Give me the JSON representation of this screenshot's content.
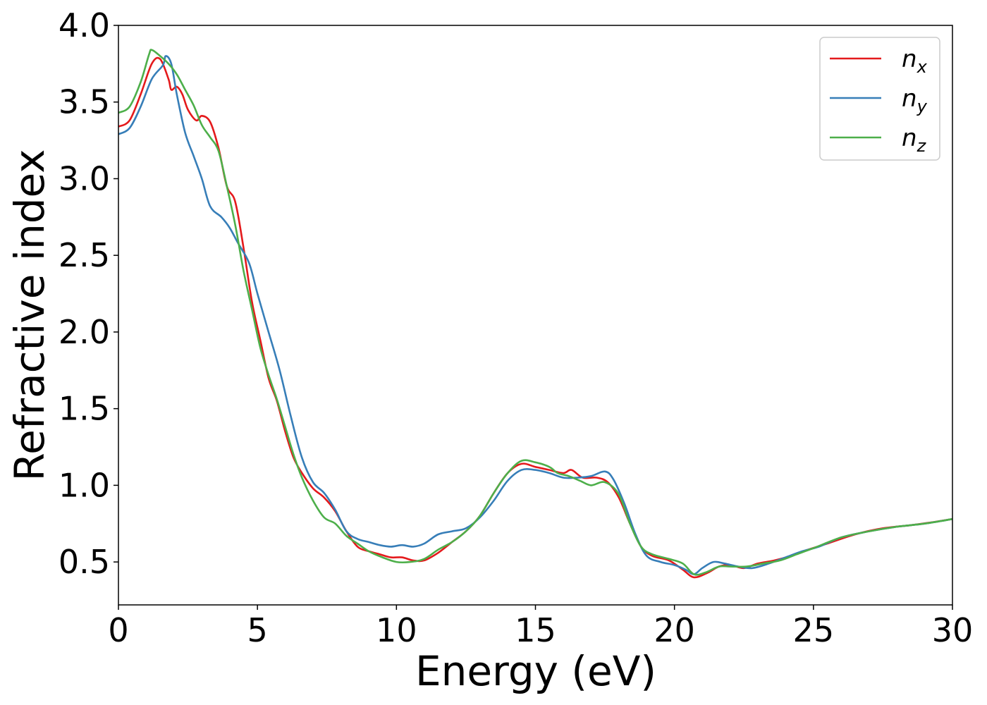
{
  "chart_data": {
    "type": "line",
    "xlabel": "Energy (eV)",
    "ylabel": "Refractive index",
    "xlim": [
      0,
      30
    ],
    "ylim": [
      0.22,
      4.0
    ],
    "xticks": [
      "0",
      "5",
      "10",
      "15",
      "20",
      "25",
      "30"
    ],
    "yticks": [
      "0.5",
      "1.0",
      "1.5",
      "2.0",
      "2.5",
      "3.0",
      "3.5",
      "4.0"
    ],
    "grid": false,
    "legend_position": "top-right",
    "series": [
      {
        "name": "n",
        "subscript": "x",
        "color": "#e41a1c",
        "points": [
          [
            0,
            3.34
          ],
          [
            0.4,
            3.38
          ],
          [
            0.8,
            3.55
          ],
          [
            1.2,
            3.75
          ],
          [
            1.5,
            3.78
          ],
          [
            1.8,
            3.65
          ],
          [
            1.9,
            3.58
          ],
          [
            2.1,
            3.6
          ],
          [
            2.3,
            3.55
          ],
          [
            2.5,
            3.45
          ],
          [
            2.8,
            3.38
          ],
          [
            3.0,
            3.41
          ],
          [
            3.3,
            3.37
          ],
          [
            3.6,
            3.2
          ],
          [
            3.9,
            2.95
          ],
          [
            4.2,
            2.85
          ],
          [
            4.5,
            2.55
          ],
          [
            4.8,
            2.2
          ],
          [
            5.1,
            1.95
          ],
          [
            5.4,
            1.7
          ],
          [
            5.7,
            1.55
          ],
          [
            6.0,
            1.35
          ],
          [
            6.3,
            1.18
          ],
          [
            6.6,
            1.08
          ],
          [
            7.0,
            0.98
          ],
          [
            7.4,
            0.92
          ],
          [
            7.8,
            0.83
          ],
          [
            8.2,
            0.7
          ],
          [
            8.6,
            0.6
          ],
          [
            9.0,
            0.57
          ],
          [
            9.4,
            0.55
          ],
          [
            9.8,
            0.53
          ],
          [
            10.2,
            0.53
          ],
          [
            10.6,
            0.51
          ],
          [
            11.0,
            0.51
          ],
          [
            11.5,
            0.56
          ],
          [
            12.0,
            0.63
          ],
          [
            12.5,
            0.7
          ],
          [
            13.0,
            0.8
          ],
          [
            13.5,
            0.95
          ],
          [
            14.0,
            1.08
          ],
          [
            14.5,
            1.14
          ],
          [
            15.0,
            1.12
          ],
          [
            15.5,
            1.1
          ],
          [
            16.0,
            1.08
          ],
          [
            16.3,
            1.1
          ],
          [
            16.7,
            1.05
          ],
          [
            17.2,
            1.05
          ],
          [
            17.6,
            1.02
          ],
          [
            18.0,
            0.92
          ],
          [
            18.4,
            0.75
          ],
          [
            18.8,
            0.6
          ],
          [
            19.2,
            0.54
          ],
          [
            19.8,
            0.51
          ],
          [
            20.3,
            0.45
          ],
          [
            20.7,
            0.4
          ],
          [
            21.2,
            0.43
          ],
          [
            21.6,
            0.47
          ],
          [
            22.0,
            0.48
          ],
          [
            22.5,
            0.46
          ],
          [
            23.0,
            0.49
          ],
          [
            23.6,
            0.51
          ],
          [
            24.2,
            0.54
          ],
          [
            24.8,
            0.58
          ],
          [
            25.5,
            0.62
          ],
          [
            26.5,
            0.68
          ],
          [
            27.5,
            0.72
          ],
          [
            28.5,
            0.74
          ],
          [
            29.3,
            0.76
          ],
          [
            30,
            0.78
          ]
        ]
      },
      {
        "name": "n",
        "subscript": "y",
        "color": "#377eb8",
        "points": [
          [
            0,
            3.29
          ],
          [
            0.4,
            3.33
          ],
          [
            0.8,
            3.47
          ],
          [
            1.2,
            3.65
          ],
          [
            1.6,
            3.74
          ],
          [
            1.7,
            3.8
          ],
          [
            1.9,
            3.75
          ],
          [
            2.1,
            3.55
          ],
          [
            2.4,
            3.3
          ],
          [
            2.7,
            3.15
          ],
          [
            3.0,
            3.0
          ],
          [
            3.3,
            2.82
          ],
          [
            3.7,
            2.75
          ],
          [
            4.0,
            2.68
          ],
          [
            4.3,
            2.58
          ],
          [
            4.7,
            2.45
          ],
          [
            5.0,
            2.25
          ],
          [
            5.4,
            2.0
          ],
          [
            5.8,
            1.75
          ],
          [
            6.2,
            1.45
          ],
          [
            6.6,
            1.18
          ],
          [
            7.0,
            1.02
          ],
          [
            7.4,
            0.95
          ],
          [
            7.8,
            0.84
          ],
          [
            8.2,
            0.7
          ],
          [
            8.6,
            0.65
          ],
          [
            9.0,
            0.63
          ],
          [
            9.4,
            0.61
          ],
          [
            9.8,
            0.6
          ],
          [
            10.2,
            0.61
          ],
          [
            10.6,
            0.6
          ],
          [
            11.0,
            0.62
          ],
          [
            11.5,
            0.68
          ],
          [
            12.0,
            0.7
          ],
          [
            12.5,
            0.72
          ],
          [
            13.0,
            0.79
          ],
          [
            13.5,
            0.9
          ],
          [
            14.0,
            1.03
          ],
          [
            14.5,
            1.1
          ],
          [
            15.0,
            1.1
          ],
          [
            15.5,
            1.08
          ],
          [
            16.0,
            1.05
          ],
          [
            16.5,
            1.05
          ],
          [
            17.0,
            1.06
          ],
          [
            17.5,
            1.09
          ],
          [
            17.8,
            1.04
          ],
          [
            18.2,
            0.88
          ],
          [
            18.6,
            0.68
          ],
          [
            19.0,
            0.54
          ],
          [
            19.5,
            0.5
          ],
          [
            20.0,
            0.48
          ],
          [
            20.4,
            0.45
          ],
          [
            20.7,
            0.42
          ],
          [
            21.0,
            0.46
          ],
          [
            21.4,
            0.5
          ],
          [
            21.8,
            0.49
          ],
          [
            22.3,
            0.47
          ],
          [
            22.8,
            0.46
          ],
          [
            23.4,
            0.49
          ],
          [
            24.0,
            0.53
          ],
          [
            24.6,
            0.57
          ],
          [
            25.2,
            0.6
          ],
          [
            26.0,
            0.66
          ],
          [
            27.0,
            0.7
          ],
          [
            28.0,
            0.73
          ],
          [
            29.0,
            0.75
          ],
          [
            30,
            0.78
          ]
        ]
      },
      {
        "name": "n",
        "subscript": "z",
        "color": "#4daf4a",
        "points": [
          [
            0,
            3.43
          ],
          [
            0.4,
            3.47
          ],
          [
            0.8,
            3.63
          ],
          [
            1.1,
            3.81
          ],
          [
            1.2,
            3.84
          ],
          [
            1.5,
            3.8
          ],
          [
            1.8,
            3.75
          ],
          [
            2.1,
            3.68
          ],
          [
            2.4,
            3.58
          ],
          [
            2.7,
            3.48
          ],
          [
            3.0,
            3.35
          ],
          [
            3.3,
            3.27
          ],
          [
            3.6,
            3.18
          ],
          [
            3.9,
            2.95
          ],
          [
            4.2,
            2.7
          ],
          [
            4.5,
            2.4
          ],
          [
            4.8,
            2.15
          ],
          [
            5.1,
            1.9
          ],
          [
            5.4,
            1.72
          ],
          [
            5.7,
            1.56
          ],
          [
            6.0,
            1.38
          ],
          [
            6.3,
            1.2
          ],
          [
            6.6,
            1.05
          ],
          [
            7.0,
            0.9
          ],
          [
            7.4,
            0.79
          ],
          [
            7.8,
            0.75
          ],
          [
            8.2,
            0.67
          ],
          [
            8.6,
            0.62
          ],
          [
            9.0,
            0.57
          ],
          [
            9.5,
            0.53
          ],
          [
            10.0,
            0.5
          ],
          [
            10.5,
            0.5
          ],
          [
            11.0,
            0.52
          ],
          [
            11.5,
            0.58
          ],
          [
            12.0,
            0.63
          ],
          [
            12.5,
            0.7
          ],
          [
            13.0,
            0.8
          ],
          [
            13.5,
            0.95
          ],
          [
            14.0,
            1.08
          ],
          [
            14.5,
            1.16
          ],
          [
            15.0,
            1.15
          ],
          [
            15.5,
            1.12
          ],
          [
            15.8,
            1.08
          ],
          [
            16.2,
            1.06
          ],
          [
            16.6,
            1.03
          ],
          [
            17.0,
            1.0
          ],
          [
            17.5,
            1.02
          ],
          [
            18.0,
            0.94
          ],
          [
            18.4,
            0.75
          ],
          [
            18.8,
            0.6
          ],
          [
            19.2,
            0.55
          ],
          [
            19.8,
            0.52
          ],
          [
            20.3,
            0.49
          ],
          [
            20.7,
            0.42
          ],
          [
            21.1,
            0.43
          ],
          [
            21.6,
            0.47
          ],
          [
            22.0,
            0.47
          ],
          [
            22.6,
            0.47
          ],
          [
            23.2,
            0.49
          ],
          [
            23.8,
            0.51
          ],
          [
            24.4,
            0.55
          ],
          [
            25.0,
            0.59
          ],
          [
            26.0,
            0.66
          ],
          [
            27.0,
            0.7
          ],
          [
            28.0,
            0.73
          ],
          [
            29.0,
            0.75
          ],
          [
            30,
            0.78
          ]
        ]
      }
    ]
  }
}
